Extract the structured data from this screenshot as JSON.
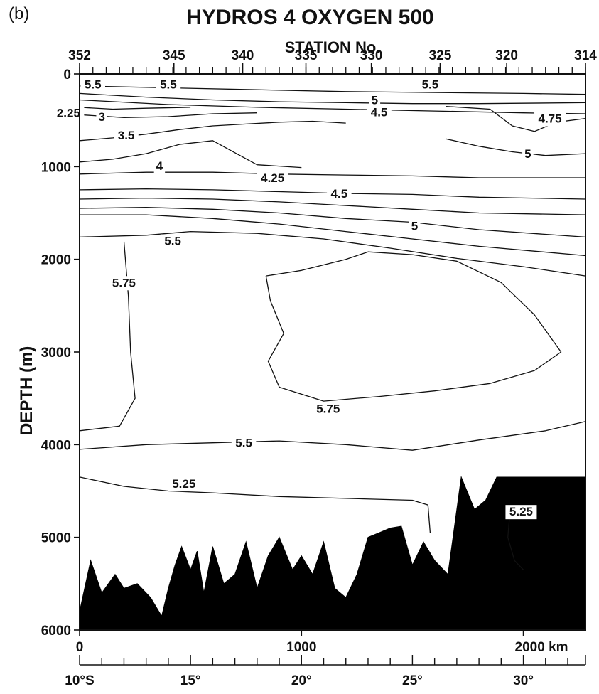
{
  "panel_label": "(b)",
  "chart_data": {
    "type": "contour",
    "title": "HYDROS 4 OXYGEN 500",
    "top_axis": {
      "label": "STATION No.",
      "ticks": [
        {
          "label": "352",
          "km": 0
        },
        {
          "label": "345",
          "km": 425
        },
        {
          "label": "340",
          "km": 735
        },
        {
          "label": "335",
          "km": 1020
        },
        {
          "label": "330",
          "km": 1315
        },
        {
          "label": "325",
          "km": 1625
        },
        {
          "label": "320",
          "km": 1925
        },
        {
          "label": "314",
          "km": 2280
        }
      ]
    },
    "x_axis": {
      "ticks": [
        {
          "label": "0",
          "value": 0
        },
        {
          "label": "1000",
          "value": 1000
        },
        {
          "label": "2000 km",
          "value": 2000
        }
      ],
      "range": [
        0,
        2280
      ]
    },
    "latitude_axis": {
      "ticks": [
        {
          "label": "10°S",
          "lat": 10
        },
        {
          "label": "15°",
          "lat": 15
        },
        {
          "label": "20°",
          "lat": 20
        },
        {
          "label": "25°",
          "lat": 25
        },
        {
          "label": "30°",
          "lat": 30
        }
      ],
      "range": [
        10,
        32.8
      ]
    },
    "y_axis": {
      "label": "DEPTH (m)",
      "ticks": [
        0,
        1000,
        2000,
        3000,
        4000,
        5000,
        6000
      ],
      "range": [
        0,
        6000
      ],
      "inverted": true
    },
    "contours": [
      {
        "level": 5.5,
        "points": [
          [
            0,
            130
          ],
          [
            400,
            150
          ],
          [
            800,
            170
          ],
          [
            1200,
            190
          ],
          [
            1600,
            200
          ],
          [
            2000,
            210
          ],
          [
            2280,
            220
          ]
        ]
      },
      {
        "level": 5,
        "points": [
          [
            0,
            210
          ],
          [
            300,
            250
          ],
          [
            600,
            280
          ],
          [
            900,
            300
          ],
          [
            1200,
            310
          ],
          [
            1500,
            320
          ],
          [
            1800,
            320
          ],
          [
            2280,
            310
          ]
        ]
      },
      {
        "level": 4.5,
        "points": [
          [
            0,
            280
          ],
          [
            400,
            330
          ],
          [
            800,
            360
          ],
          [
            1200,
            380
          ],
          [
            1600,
            400
          ],
          [
            2000,
            420
          ],
          [
            2280,
            430
          ]
        ]
      },
      {
        "level": 4.75,
        "points": [
          [
            1650,
            350
          ],
          [
            1850,
            380
          ],
          [
            1950,
            560
          ],
          [
            2050,
            620
          ],
          [
            2150,
            520
          ],
          [
            2280,
            480
          ]
        ]
      },
      {
        "level": 3,
        "points": [
          [
            0,
            440
          ],
          [
            200,
            470
          ],
          [
            400,
            460
          ],
          [
            600,
            430
          ],
          [
            800,
            420
          ]
        ]
      },
      {
        "level": 2.25,
        "points": [
          [
            0,
            360
          ],
          [
            150,
            380
          ],
          [
            300,
            370
          ],
          [
            500,
            360
          ]
        ]
      },
      {
        "level": 3.5,
        "points": [
          [
            0,
            720
          ],
          [
            150,
            690
          ],
          [
            300,
            650
          ],
          [
            450,
            600
          ],
          [
            600,
            560
          ],
          [
            750,
            540
          ],
          [
            900,
            520
          ],
          [
            1050,
            510
          ],
          [
            1200,
            530
          ]
        ]
      },
      {
        "level": 4,
        "points": [
          [
            0,
            950
          ],
          [
            150,
            920
          ],
          [
            300,
            860
          ],
          [
            450,
            760
          ],
          [
            600,
            720
          ],
          [
            700,
            850
          ],
          [
            800,
            980
          ],
          [
            1000,
            1010
          ]
        ]
      },
      {
        "level": 5,
        "points": [
          [
            1650,
            700
          ],
          [
            1800,
            780
          ],
          [
            1950,
            840
          ],
          [
            2100,
            880
          ],
          [
            2280,
            860
          ]
        ]
      },
      {
        "level": 4.25,
        "points": [
          [
            0,
            1080
          ],
          [
            300,
            1060
          ],
          [
            600,
            1060
          ],
          [
            900,
            1080
          ],
          [
            1200,
            1090
          ],
          [
            1500,
            1100
          ],
          [
            1800,
            1120
          ],
          [
            2280,
            1120
          ]
        ]
      },
      {
        "level": 4.5,
        "points": [
          [
            0,
            1250
          ],
          [
            300,
            1240
          ],
          [
            600,
            1250
          ],
          [
            900,
            1270
          ],
          [
            1200,
            1290
          ],
          [
            1500,
            1300
          ],
          [
            1800,
            1330
          ],
          [
            2280,
            1350
          ]
        ]
      },
      {
        "level": 4.75,
        "points": [
          [
            0,
            1350
          ],
          [
            300,
            1340
          ],
          [
            600,
            1350
          ],
          [
            900,
            1380
          ],
          [
            1200,
            1420
          ],
          [
            1500,
            1460
          ],
          [
            1800,
            1500
          ],
          [
            2280,
            1520
          ]
        ]
      },
      {
        "level": 5,
        "points": [
          [
            0,
            1450
          ],
          [
            300,
            1440
          ],
          [
            600,
            1460
          ],
          [
            900,
            1500
          ],
          [
            1200,
            1560
          ],
          [
            1500,
            1600
          ],
          [
            1800,
            1680
          ],
          [
            2280,
            1760
          ]
        ]
      },
      {
        "level": 5.25,
        "points": [
          [
            0,
            1520
          ],
          [
            300,
            1520
          ],
          [
            600,
            1560
          ],
          [
            900,
            1620
          ],
          [
            1200,
            1700
          ],
          [
            1500,
            1780
          ],
          [
            1800,
            1860
          ],
          [
            2280,
            1960
          ]
        ]
      },
      {
        "level": 5.5,
        "points": [
          [
            0,
            1760
          ],
          [
            300,
            1740
          ],
          [
            500,
            1700
          ],
          [
            800,
            1720
          ],
          [
            1100,
            1780
          ],
          [
            1400,
            1880
          ],
          [
            1700,
            1990
          ],
          [
            2000,
            2080
          ],
          [
            2280,
            2180
          ]
        ]
      },
      {
        "level": 5.75,
        "points": [
          [
            200,
            1810
          ],
          [
            220,
            2400
          ],
          [
            230,
            3000
          ],
          [
            250,
            3500
          ],
          [
            180,
            3800
          ],
          [
            0,
            3850
          ]
        ]
      },
      {
        "level": 5.75,
        "points": [
          [
            840,
            2180
          ],
          [
            1000,
            2120
          ],
          [
            1200,
            2000
          ],
          [
            1300,
            1920
          ],
          [
            1500,
            1950
          ],
          [
            1700,
            2020
          ],
          [
            1900,
            2250
          ],
          [
            2050,
            2600
          ],
          [
            2170,
            3000
          ],
          [
            2050,
            3200
          ],
          [
            1850,
            3340
          ],
          [
            1600,
            3420
          ],
          [
            1350,
            3480
          ],
          [
            1100,
            3530
          ],
          [
            900,
            3380
          ],
          [
            850,
            3100
          ],
          [
            920,
            2800
          ],
          [
            860,
            2450
          ],
          [
            840,
            2180
          ]
        ]
      },
      {
        "level": 5.5,
        "points": [
          [
            0,
            4050
          ],
          [
            300,
            4000
          ],
          [
            600,
            3980
          ],
          [
            900,
            3960
          ],
          [
            1200,
            4000
          ],
          [
            1500,
            4060
          ],
          [
            1800,
            3950
          ],
          [
            2100,
            3850
          ],
          [
            2280,
            3750
          ]
        ]
      },
      {
        "level": 5.25,
        "points": [
          [
            0,
            4350
          ],
          [
            200,
            4450
          ],
          [
            400,
            4500
          ],
          [
            600,
            4520
          ],
          [
            900,
            4560
          ],
          [
            1200,
            4580
          ],
          [
            1500,
            4600
          ],
          [
            1570,
            4650
          ],
          [
            1580,
            4950
          ]
        ]
      },
      {
        "level": 5.25,
        "points": [
          [
            1940,
            4720
          ],
          [
            1930,
            5000
          ],
          [
            1960,
            5250
          ],
          [
            2000,
            5350
          ]
        ]
      }
    ],
    "contour_labels": [
      {
        "text": "5.5",
        "km": 60,
        "depth": 110
      },
      {
        "text": "5.5",
        "km": 400,
        "depth": 110
      },
      {
        "text": "5.5",
        "km": 1580,
        "depth": 110
      },
      {
        "text": "5",
        "km": 1330,
        "depth": 280
      },
      {
        "text": "4.5",
        "km": 1350,
        "depth": 410
      },
      {
        "text": "4.75",
        "km": 2120,
        "depth": 480
      },
      {
        "text": "2.25",
        "km": -50,
        "depth": 420
      },
      {
        "text": "3",
        "km": 100,
        "depth": 460
      },
      {
        "text": "3.5",
        "km": 210,
        "depth": 660
      },
      {
        "text": "4",
        "km": 360,
        "depth": 990
      },
      {
        "text": "5",
        "km": 2020,
        "depth": 860
      },
      {
        "text": "4.25",
        "km": 870,
        "depth": 1120
      },
      {
        "text": "4.5",
        "km": 1170,
        "depth": 1290
      },
      {
        "text": "5",
        "km": 1510,
        "depth": 1640
      },
      {
        "text": "5.5",
        "km": 420,
        "depth": 1800
      },
      {
        "text": "5.75",
        "km": 200,
        "depth": 2250
      },
      {
        "text": "5.75",
        "km": 1120,
        "depth": 3610
      },
      {
        "text": "5.5",
        "km": 740,
        "depth": 3980
      },
      {
        "text": "5.25",
        "km": 470,
        "depth": 4420
      },
      {
        "text": "5.25",
        "km": 1990,
        "depth": 4720
      }
    ],
    "seafloor": {
      "km": [
        0,
        50,
        100,
        160,
        200,
        260,
        320,
        370,
        400,
        430,
        460,
        500,
        530,
        560,
        600,
        650,
        700,
        750,
        800,
        850,
        900,
        960,
        1000,
        1050,
        1100,
        1150,
        1200,
        1250,
        1300,
        1350,
        1400,
        1450,
        1500,
        1550,
        1600,
        1660,
        1720,
        1780,
        1830,
        1880,
        1920,
        1960,
        2000,
        2040,
        2080,
        2120,
        2160,
        2200,
        2240,
        2280
      ],
      "depth": [
        5800,
        5250,
        5600,
        5400,
        5550,
        5500,
        5650,
        5850,
        5550,
        5300,
        5100,
        5350,
        5150,
        5600,
        5100,
        5500,
        5400,
        5050,
        5550,
        5200,
        5000,
        5350,
        5200,
        5400,
        5050,
        5550,
        5650,
        5400,
        5000,
        4950,
        4900,
        4880,
        5300,
        5050,
        5250,
        5400,
        4350,
        4700,
        4600,
        4350,
        4350,
        4350,
        4350,
        4350,
        4350,
        4350,
        4350,
        4350,
        4350,
        4350
      ]
    }
  }
}
